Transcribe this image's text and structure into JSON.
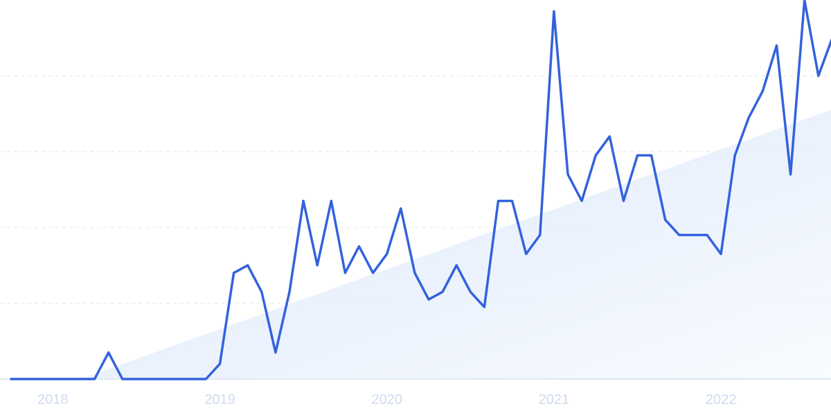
{
  "chart_data": {
    "type": "line",
    "title": "",
    "xlabel": "",
    "ylabel": "",
    "x_ticks": [
      "2018",
      "2019",
      "2020",
      "2021",
      "2022"
    ],
    "x": [
      "2017-10",
      "2017-11",
      "2017-12",
      "2018-01",
      "2018-02",
      "2018-03",
      "2018-04",
      "2018-05",
      "2018-06",
      "2018-07",
      "2018-08",
      "2018-09",
      "2018-10",
      "2018-11",
      "2018-12",
      "2019-01",
      "2019-02",
      "2019-03",
      "2019-04",
      "2019-05",
      "2019-06",
      "2019-07",
      "2019-08",
      "2019-09",
      "2019-10",
      "2019-11",
      "2019-12",
      "2020-01",
      "2020-02",
      "2020-03",
      "2020-04",
      "2020-05",
      "2020-06",
      "2020-07",
      "2020-08",
      "2020-09",
      "2020-10",
      "2020-11",
      "2020-12",
      "2021-01",
      "2021-02",
      "2021-03",
      "2021-04",
      "2021-05",
      "2021-06",
      "2021-07",
      "2021-08",
      "2021-09",
      "2021-10",
      "2021-11",
      "2021-12",
      "2022-01",
      "2022-02",
      "2022-03",
      "2022-04",
      "2022-05",
      "2022-06",
      "2022-07",
      "2022-08",
      "2022-09"
    ],
    "ylim": [
      0,
      100
    ],
    "grid": true,
    "series": [
      {
        "values": [
          0,
          0,
          0,
          0,
          0,
          0,
          0,
          7,
          0,
          0,
          0,
          0,
          0,
          0,
          0,
          4,
          28,
          30,
          23,
          7,
          23,
          47,
          30,
          47,
          28,
          35,
          28,
          33,
          45,
          28,
          21,
          23,
          30,
          23,
          19,
          47,
          47,
          33,
          38,
          97,
          54,
          47,
          59,
          64,
          47,
          59,
          59,
          42,
          38,
          38,
          38,
          33,
          59,
          69,
          76,
          88,
          54,
          100,
          80,
          90
        ]
      }
    ],
    "trend": {
      "start": [
        "2018-03",
        0
      ],
      "end": [
        "2022-08",
        71
      ]
    },
    "colors": {
      "line": "#3362dd",
      "trend_fill": "#dbe7f9",
      "grid": "#e3e6ec",
      "axis_label": "#cfdaf0"
    }
  }
}
